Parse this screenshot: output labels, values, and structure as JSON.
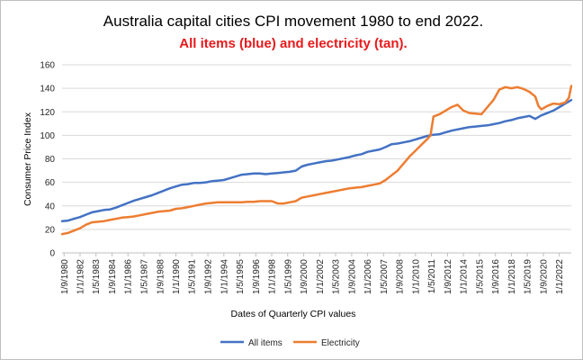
{
  "chart_data": {
    "type": "line",
    "title": "Australia capital cities CPI movement 1980 to end 2022.",
    "subtitle": "All items (blue) and electricity (tan).",
    "subtitle_color": "#e8191b",
    "xlabel": "Dates of Quarterly CPI values",
    "ylabel": "Consumer Price Index",
    "ylim": [
      0,
      160
    ],
    "y_ticks": [
      0,
      20,
      40,
      60,
      80,
      100,
      120,
      140,
      160
    ],
    "grid": true,
    "legend_position": "bottom",
    "x_tick_labels": [
      "1/9/1980",
      "1/1/1982",
      "1/5/1983",
      "1/9/1984",
      "1/1/1986",
      "1/5/1987",
      "1/9/1988",
      "1/1/1990",
      "1/5/1991",
      "1/9/1992",
      "1/1/1994",
      "1/5/1995",
      "1/9/1996",
      "1/1/1998",
      "1/5/1999",
      "1/9/2000",
      "1/1/2002",
      "1/5/2003",
      "1/9/2004",
      "1/1/2006",
      "1/5/2007",
      "1/9/2008",
      "1/1/2010",
      "1/5/2011",
      "1/9/2012",
      "1/1/2014",
      "1/5/2015",
      "1/9/2016",
      "1/1/2018",
      "1/5/2019",
      "1/9/2020",
      "1/1/2022"
    ],
    "x_tick_years": [
      1980.67,
      1982.0,
      1983.33,
      1984.67,
      1986.0,
      1987.33,
      1988.67,
      1990.0,
      1991.33,
      1992.67,
      1994.0,
      1995.33,
      1996.67,
      1998.0,
      1999.33,
      2000.67,
      2002.0,
      2003.33,
      2004.67,
      2006.0,
      2007.33,
      2008.67,
      2010.0,
      2011.33,
      2012.67,
      2014.0,
      2015.33,
      2016.67,
      2018.0,
      2019.33,
      2020.67,
      2022.0
    ],
    "x_range": [
      1980.5,
      2023.0
    ],
    "series": [
      {
        "name": "All items",
        "color": "#4472c4",
        "x": [
          1980.5,
          1981,
          1981.5,
          1982,
          1982.5,
          1983,
          1983.5,
          1984,
          1984.5,
          1985,
          1985.5,
          1986,
          1986.5,
          1987,
          1987.5,
          1988,
          1988.5,
          1989,
          1989.5,
          1990,
          1990.5,
          1991,
          1991.5,
          1992,
          1992.5,
          1993,
          1993.5,
          1994,
          1994.5,
          1995,
          1995.5,
          1996,
          1996.5,
          1997,
          1997.5,
          1998,
          1998.5,
          1999,
          1999.5,
          2000,
          2000.5,
          2001,
          2001.5,
          2002,
          2002.5,
          2003,
          2003.5,
          2004,
          2004.5,
          2005,
          2005.5,
          2006,
          2006.5,
          2007,
          2007.5,
          2008,
          2008.5,
          2009,
          2009.5,
          2010,
          2010.5,
          2011,
          2011.5,
          2012,
          2012.5,
          2013,
          2013.5,
          2014,
          2014.5,
          2015,
          2015.5,
          2016,
          2016.5,
          2017,
          2017.5,
          2018,
          2018.5,
          2019,
          2019.5,
          2020,
          2020.5,
          2021,
          2021.5,
          2022,
          2022.5,
          2023
        ],
        "values": [
          27,
          27.5,
          29,
          30.5,
          32.5,
          34.5,
          35.5,
          36.5,
          37,
          38.5,
          40.5,
          42.5,
          44.5,
          46,
          47.5,
          49,
          51,
          53,
          55,
          56.5,
          58,
          58.5,
          59.5,
          59.5,
          60,
          61,
          61.5,
          62,
          63.5,
          65,
          66.5,
          67,
          67.5,
          67.5,
          67,
          67.5,
          68,
          68.5,
          69,
          70,
          73.5,
          75,
          76,
          77,
          78,
          78.5,
          79.5,
          80.5,
          81.5,
          83,
          84,
          86,
          87,
          88,
          90,
          92.5,
          93,
          94,
          95,
          96.5,
          98,
          99.5,
          100.5,
          101,
          102.5,
          104,
          105,
          106,
          107,
          107.5,
          108,
          108.5,
          109.5,
          110.5,
          112,
          113,
          114.5,
          115.5,
          116.5,
          114,
          117,
          119,
          121,
          124,
          127,
          130
        ]
      },
      {
        "name": "Electricity",
        "color": "#ed7d31",
        "x": [
          1980.5,
          1981,
          1981.5,
          1982,
          1982.5,
          1983,
          1983.5,
          1984,
          1984.5,
          1985,
          1985.5,
          1986,
          1986.5,
          1987,
          1987.5,
          1988,
          1988.5,
          1989,
          1989.5,
          1990,
          1990.5,
          1991,
          1991.5,
          1992,
          1992.5,
          1993,
          1993.5,
          1994,
          1994.5,
          1995,
          1995.5,
          1996,
          1996.5,
          1997,
          1997.5,
          1998,
          1998.5,
          1999,
          1999.5,
          2000,
          2000.5,
          2001,
          2001.5,
          2002,
          2002.5,
          2003,
          2003.5,
          2004,
          2004.5,
          2005,
          2005.5,
          2006,
          2006.5,
          2007,
          2007.5,
          2008,
          2008.5,
          2009,
          2009.5,
          2010,
          2010.5,
          2011,
          2011.25,
          2011.5,
          2012,
          2012.5,
          2013,
          2013.5,
          2014,
          2014.5,
          2015,
          2015.5,
          2016,
          2016.5,
          2017,
          2017.5,
          2018,
          2018.5,
          2019,
          2019.5,
          2020,
          2020.25,
          2020.5,
          2021,
          2021.5,
          2022,
          2022.5,
          2022.8,
          2023
        ],
        "values": [
          16,
          17,
          19,
          21,
          24,
          26,
          26.5,
          27,
          28,
          29,
          30,
          30.5,
          31,
          32,
          33,
          34,
          35,
          35.5,
          36,
          37.5,
          38,
          39,
          40,
          41,
          42,
          42.5,
          43,
          43,
          43,
          43,
          43,
          43.5,
          43.5,
          44,
          44,
          44,
          42,
          42,
          43,
          44,
          47,
          48,
          49,
          50,
          51,
          52,
          53,
          54,
          55,
          55.5,
          56,
          57,
          58,
          59,
          62,
          66,
          70,
          76,
          82,
          87,
          92,
          97,
          100,
          116,
          118,
          121,
          124,
          126,
          121,
          119,
          118.5,
          118,
          124,
          130,
          139,
          141,
          140,
          141,
          139.5,
          137,
          133,
          125,
          122,
          125,
          127,
          126.5,
          128,
          132,
          142
        ]
      }
    ]
  },
  "legend": {
    "all_items_label": "All items",
    "electricity_label": "Electricity"
  }
}
